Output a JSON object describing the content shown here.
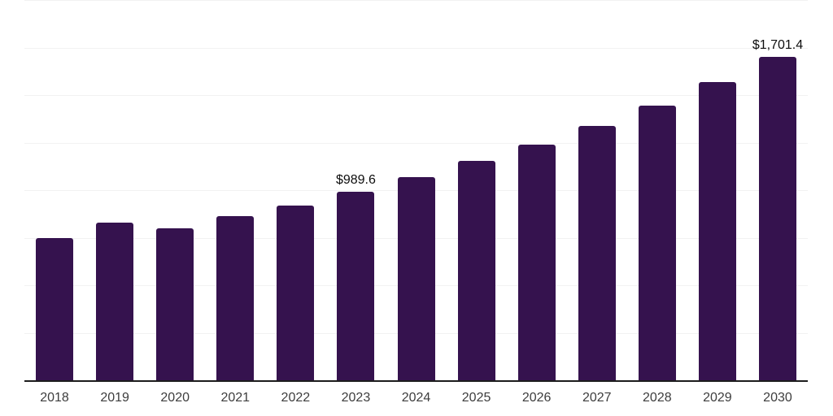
{
  "chart_data": {
    "type": "bar",
    "title": "",
    "xlabel": "",
    "ylabel": "",
    "categories": [
      "2018",
      "2019",
      "2020",
      "2021",
      "2022",
      "2023",
      "2024",
      "2025",
      "2026",
      "2027",
      "2028",
      "2029",
      "2030"
    ],
    "values": [
      750,
      827,
      801,
      863,
      918,
      989.6,
      1070,
      1152,
      1238,
      1338,
      1446,
      1570,
      1701.4
    ],
    "point_labels": [
      "",
      "",
      "",
      "",
      "",
      "$989.6",
      "",
      "",
      "",
      "",
      "",
      "",
      "$1,701.4"
    ],
    "ylim": [
      0,
      2000
    ],
    "gridline_step": 250,
    "grid": true,
    "legend": "none"
  },
  "colors": {
    "bar": "#35124E",
    "axis_line": "#1c1c1c",
    "gridline": "#f2f2f2",
    "tick_label": "#3d3d3d",
    "data_label": "#0d0d0d",
    "background": "#ffffff"
  }
}
